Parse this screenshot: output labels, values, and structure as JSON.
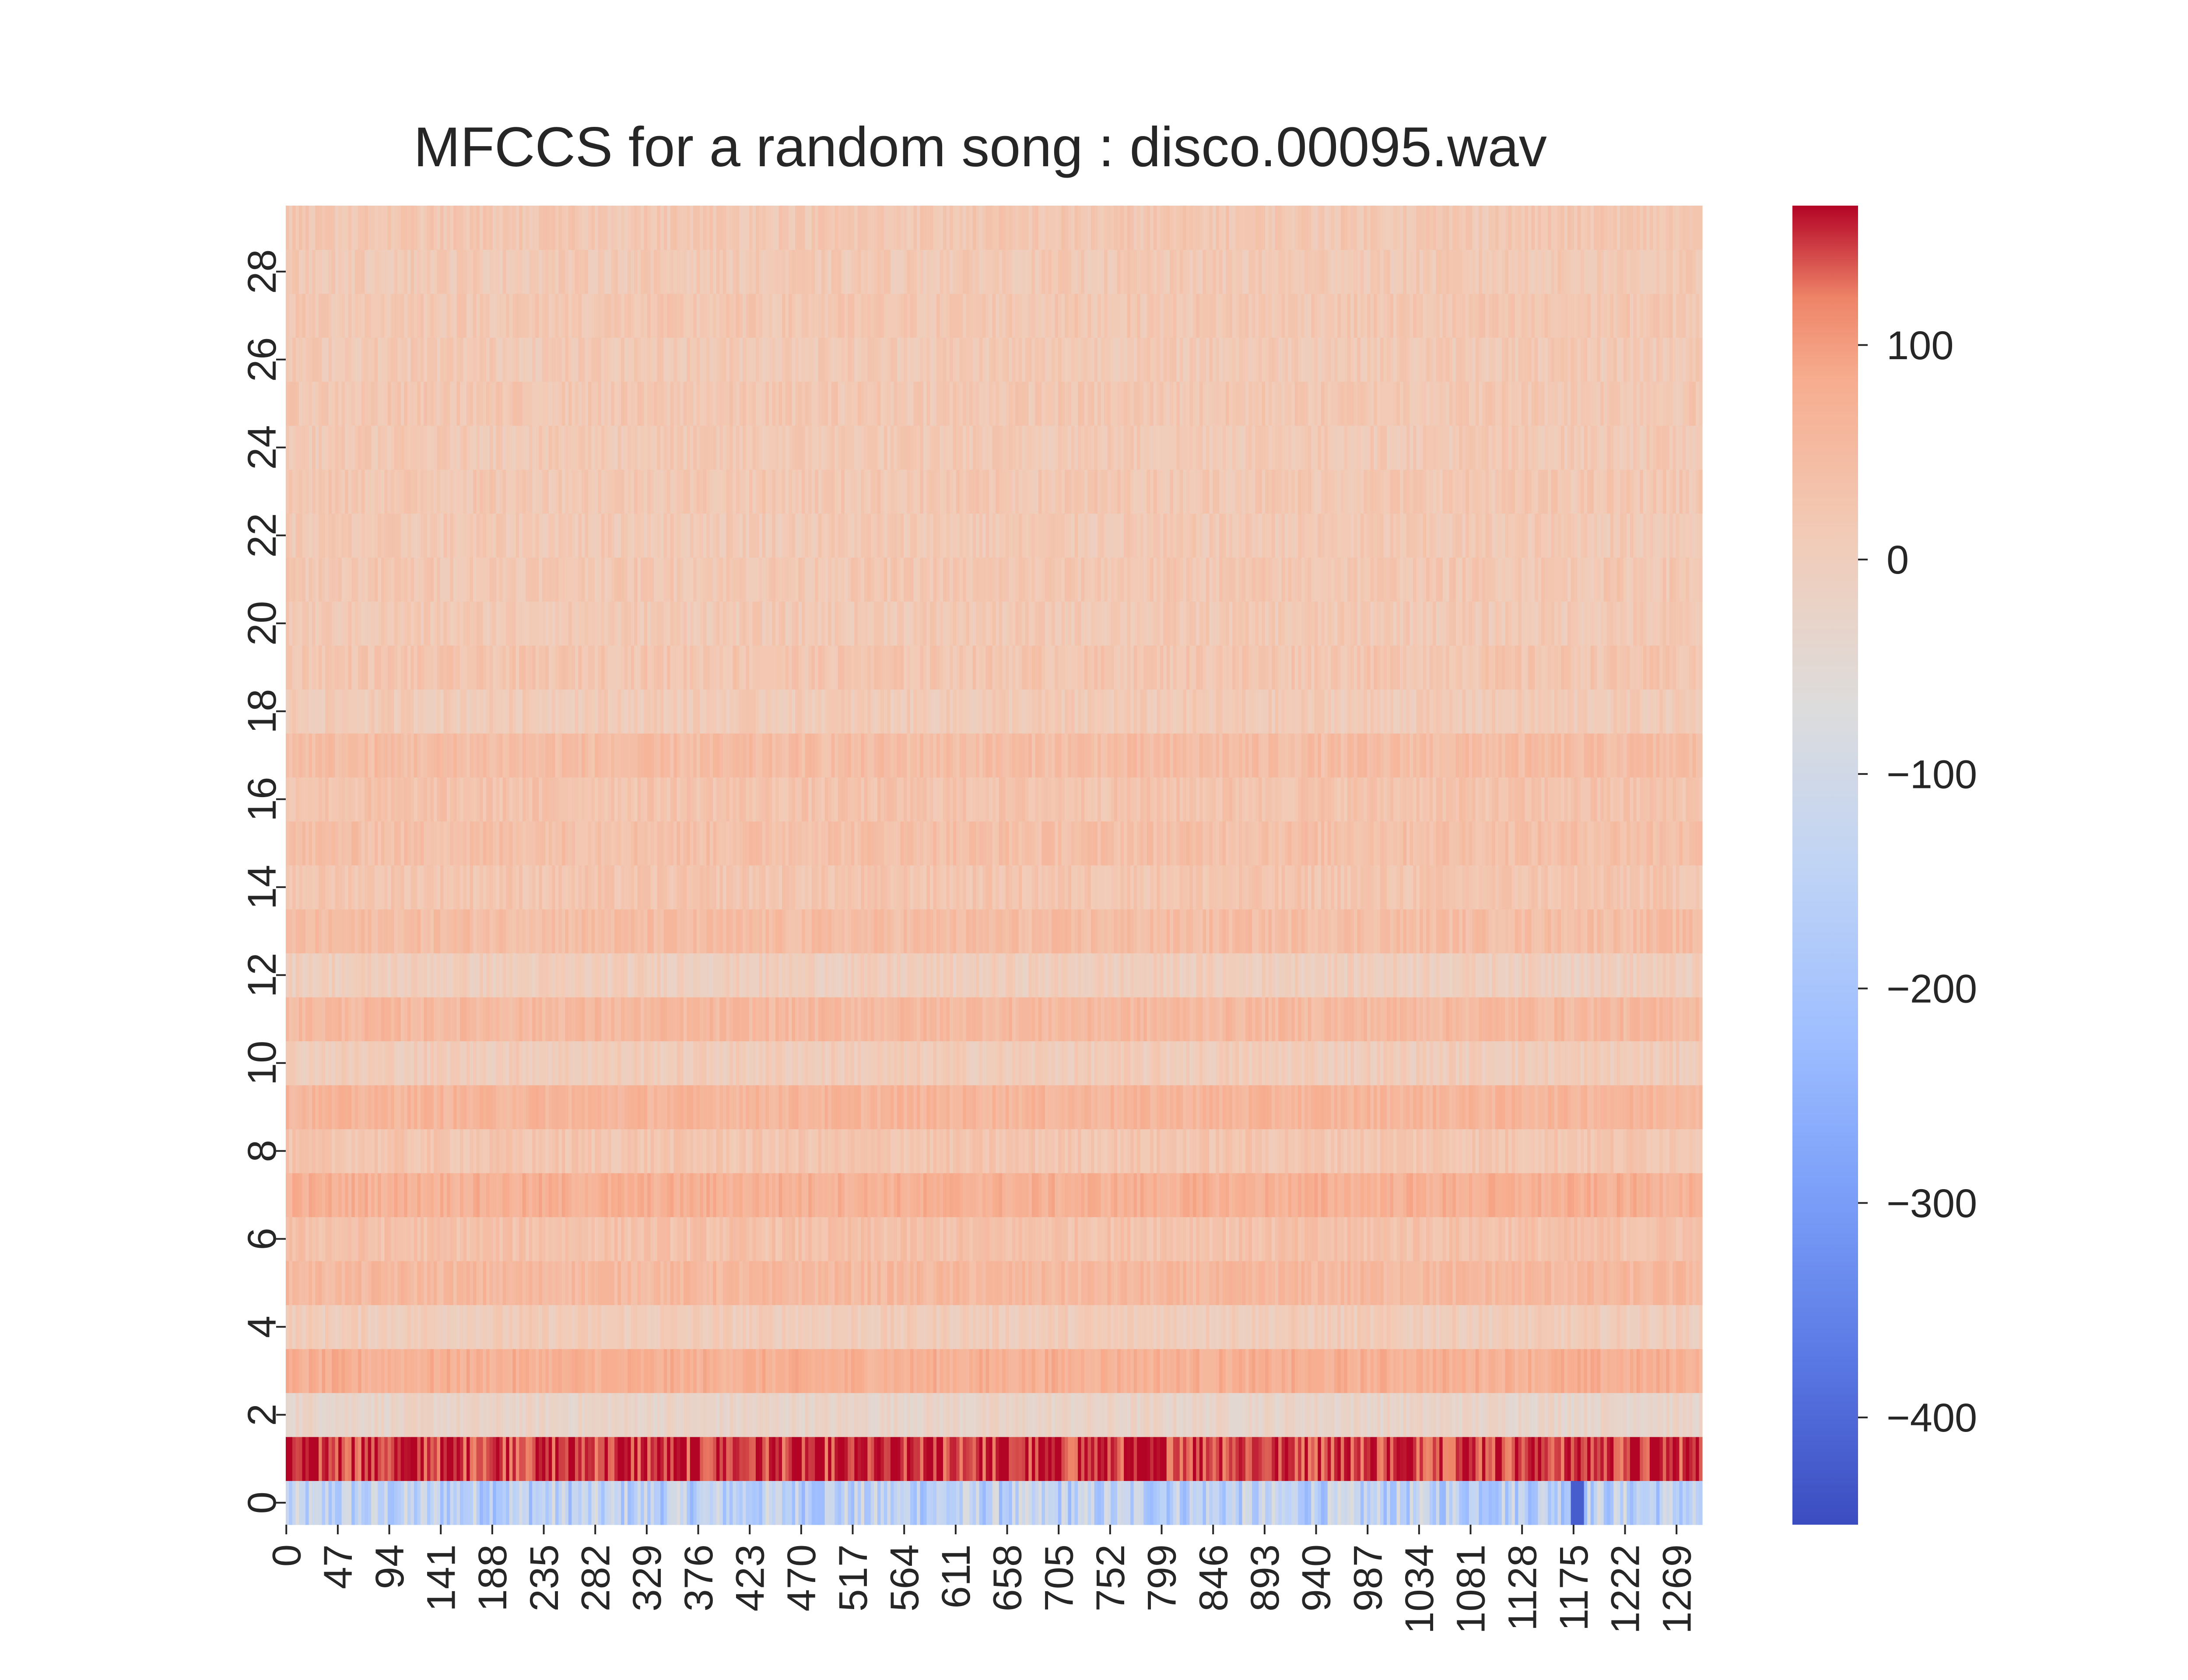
{
  "chart_data": {
    "type": "heatmap",
    "title": "MFCCS for a random song : disco.00095.wav",
    "xlabel": "",
    "ylabel": "",
    "n_rows": 30,
    "n_cols": 1293,
    "x_tick_labels": [
      "0",
      "47",
      "94",
      "141",
      "188",
      "235",
      "282",
      "329",
      "376",
      "423",
      "470",
      "517",
      "564",
      "611",
      "658",
      "705",
      "752",
      "799",
      "846",
      "893",
      "940",
      "987",
      "1034",
      "1081",
      "1128",
      "1175",
      "1222",
      "1269"
    ],
    "y_tick_labels": [
      "0",
      "2",
      "4",
      "6",
      "8",
      "10",
      "12",
      "14",
      "16",
      "18",
      "20",
      "22",
      "24",
      "26",
      "28"
    ],
    "colormap": "coolwarm",
    "vmin": -450,
    "vmax": 165,
    "colorbar_ticks": [
      100,
      0,
      -100,
      -200,
      -300,
      -400
    ],
    "colorbar_tick_labels": [
      "100",
      "0",
      "−100",
      "−200",
      "−300",
      "−400"
    ],
    "row_mean_values": [
      -150,
      150,
      -25,
      75,
      5,
      55,
      35,
      75,
      25,
      65,
      5,
      55,
      0,
      45,
      25,
      40,
      30,
      45,
      10,
      25,
      15,
      20,
      15,
      20,
      15,
      20,
      15,
      20,
      15,
      20
    ],
    "grid": false,
    "colorbar_position": "right"
  }
}
